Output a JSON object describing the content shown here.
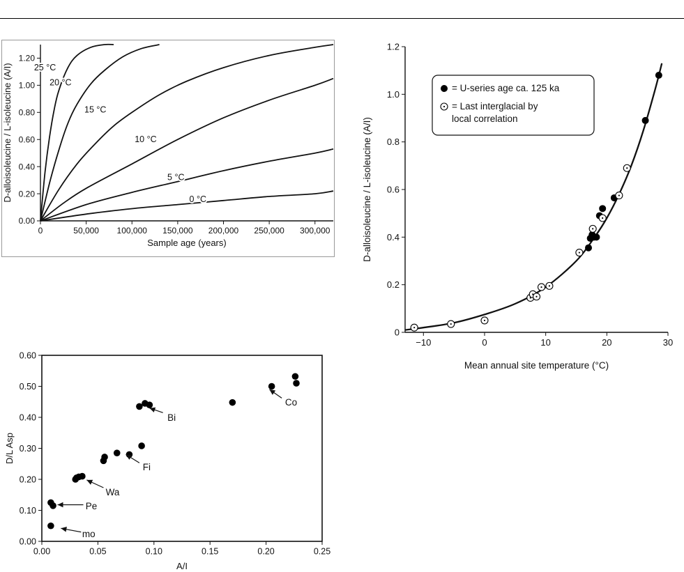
{
  "chart_data": [
    {
      "type": "line",
      "xlabel": "Sample age (years)",
      "ylabel": "D-alloisoleucine / L-isoleucine (A/I)",
      "xlim": [
        0,
        320000
      ],
      "ylim": [
        0,
        1.3
      ],
      "x_ticks": [
        0,
        50000,
        100000,
        150000,
        200000,
        250000,
        300000
      ],
      "x_tick_labels": [
        "0",
        "50,000",
        "100,000",
        "150,000",
        "200,000",
        "250,000",
        "300,000"
      ],
      "y_ticks": [
        0,
        0.2,
        0.4,
        0.6,
        0.8,
        1.0,
        1.2
      ],
      "y_tick_labels": [
        "0.00",
        "0.20",
        "0.40",
        "0.60",
        "0.80",
        "1.00",
        "1.20"
      ],
      "grid": false,
      "series": [
        {
          "name": "25 °C",
          "x": [
            0,
            5000,
            10000,
            15000,
            20000,
            30000,
            40000,
            55000,
            70000,
            80000
          ],
          "values": [
            0,
            0.36,
            0.62,
            0.82,
            0.96,
            1.13,
            1.22,
            1.28,
            1.3,
            1.3
          ]
        },
        {
          "name": "20 °C",
          "x": [
            0,
            10000,
            20000,
            30000,
            40000,
            55000,
            70000,
            90000,
            110000,
            130000
          ],
          "values": [
            0,
            0.28,
            0.52,
            0.72,
            0.86,
            1.01,
            1.11,
            1.21,
            1.27,
            1.3
          ]
        },
        {
          "name": "15 °C",
          "x": [
            0,
            20000,
            40000,
            60000,
            80000,
            100000,
            130000,
            160000,
            200000,
            250000,
            300000,
            320000
          ],
          "values": [
            0,
            0.23,
            0.42,
            0.57,
            0.7,
            0.8,
            0.93,
            1.03,
            1.13,
            1.22,
            1.28,
            1.3
          ]
        },
        {
          "name": "10 °C",
          "x": [
            0,
            25000,
            50000,
            100000,
            150000,
            200000,
            250000,
            300000,
            320000
          ],
          "values": [
            0,
            0.13,
            0.24,
            0.42,
            0.6,
            0.76,
            0.89,
            1.0,
            1.05
          ]
        },
        {
          "name": "5 °C",
          "x": [
            0,
            50000,
            100000,
            150000,
            200000,
            250000,
            300000,
            320000
          ],
          "values": [
            0,
            0.12,
            0.21,
            0.29,
            0.37,
            0.44,
            0.5,
            0.53
          ]
        },
        {
          "name": "0 °C",
          "x": [
            0,
            50000,
            100000,
            150000,
            200000,
            250000,
            300000,
            320000
          ],
          "values": [
            0,
            0.05,
            0.09,
            0.12,
            0.15,
            0.18,
            0.2,
            0.22
          ]
        }
      ],
      "series_labels": [
        {
          "text": "25 °C",
          "x": 5000,
          "y": 1.11
        },
        {
          "text": "20 °C",
          "x": 22000,
          "y": 1.0
        },
        {
          "text": "15 °C",
          "x": 60000,
          "y": 0.8
        },
        {
          "text": "10 °C",
          "x": 115000,
          "y": 0.58
        },
        {
          "text": "5 °C",
          "x": 148000,
          "y": 0.3
        },
        {
          "text": "0 °C",
          "x": 172000,
          "y": 0.14
        }
      ]
    },
    {
      "type": "scatter",
      "xlabel": "Mean annual site temperature (°C)",
      "ylabel": "D-alloisoleucine / L-isoleucine (A/I)",
      "xlim": [
        -13,
        30
      ],
      "ylim": [
        0,
        1.2
      ],
      "x_ticks": [
        -10,
        0,
        10,
        20,
        30
      ],
      "x_tick_labels": [
        "−10",
        "0",
        "10",
        "20",
        "30"
      ],
      "y_ticks": [
        0,
        0.2,
        0.4,
        0.6,
        0.8,
        1.0,
        1.2
      ],
      "y_tick_labels": [
        "0",
        "0.2",
        "0.4",
        "0.6",
        "0.8",
        "1.0",
        "1.2"
      ],
      "grid": false,
      "legend_position": "top-left",
      "series": [
        {
          "name": "= U-series age ca. 125 ka",
          "marker": "filled",
          "x": [
            17.0,
            17.3,
            17.6,
            17.9,
            18.3,
            18.8,
            19.3,
            21.2,
            26.3,
            28.5
          ],
          "values": [
            0.355,
            0.395,
            0.41,
            0.4,
            0.4,
            0.49,
            0.52,
            0.565,
            0.89,
            1.08
          ]
        },
        {
          "name": "= Last interglacial by local correlation",
          "marker": "dotted-open",
          "x": [
            -11.5,
            -5.5,
            0.0,
            7.5,
            7.9,
            8.5,
            9.3,
            10.6,
            15.5,
            17.7,
            19.3,
            22.0,
            23.3
          ],
          "values": [
            0.02,
            0.035,
            0.05,
            0.145,
            0.16,
            0.15,
            0.19,
            0.195,
            0.335,
            0.435,
            0.48,
            0.575,
            0.69
          ]
        }
      ],
      "legend_lines": [
        {
          "marker": "filled",
          "lines": [
            "= U-series age ca. 125 ka"
          ]
        },
        {
          "marker": "dotted-open",
          "lines": [
            "= Last interglacial by",
            "local correlation"
          ]
        }
      ],
      "fit_curve": {
        "x": [
          -13,
          -10,
          -5,
          0,
          5,
          10,
          15,
          18,
          20,
          22,
          24,
          26,
          28,
          29
        ],
        "values": [
          0.01,
          0.02,
          0.04,
          0.075,
          0.12,
          0.19,
          0.3,
          0.4,
          0.48,
          0.58,
          0.7,
          0.85,
          1.03,
          1.13
        ]
      }
    },
    {
      "type": "scatter",
      "xlabel": "A/I",
      "ylabel": "D/L Asp",
      "xlim": [
        0,
        0.25
      ],
      "ylim": [
        0,
        0.6
      ],
      "x_ticks": [
        0,
        0.05,
        0.1,
        0.15,
        0.2,
        0.25
      ],
      "x_tick_labels": [
        "0.00",
        "0.05",
        "0.10",
        "0.15",
        "0.20",
        "0.25"
      ],
      "y_ticks": [
        0,
        0.1,
        0.2,
        0.3,
        0.4,
        0.5,
        0.6
      ],
      "y_tick_labels": [
        "0.00",
        "0.10",
        "0.20",
        "0.30",
        "0.40",
        "0.50",
        "0.60"
      ],
      "grid": false,
      "series": [
        {
          "marker": "filled",
          "x": [
            0.008,
            0.008,
            0.01,
            0.03,
            0.031,
            0.033,
            0.036,
            0.055,
            0.056,
            0.067,
            0.078,
            0.087,
            0.089,
            0.092,
            0.096,
            0.17,
            0.205,
            0.226,
            0.227
          ],
          "values": [
            0.05,
            0.125,
            0.115,
            0.2,
            0.205,
            0.208,
            0.21,
            0.26,
            0.272,
            0.285,
            0.28,
            0.435,
            0.308,
            0.445,
            0.44,
            0.448,
            0.5,
            0.532,
            0.51
          ]
        }
      ],
      "annotations": [
        {
          "text": "mo",
          "x": 0.036,
          "y": 0.025,
          "ax": 0.017,
          "ay": 0.042,
          "tx": 0.035,
          "ty": 0.03
        },
        {
          "text": "Pe",
          "x": 0.039,
          "y": 0.115,
          "ax": 0.014,
          "ay": 0.118,
          "tx": 0.037,
          "ty": 0.118
        },
        {
          "text": "Wa",
          "x": 0.057,
          "y": 0.16,
          "ax": 0.04,
          "ay": 0.198,
          "tx": 0.055,
          "ty": 0.173
        },
        {
          "text": "Fi",
          "x": 0.09,
          "y": 0.24,
          "ax": 0.075,
          "ay": 0.28,
          "tx": 0.087,
          "ty": 0.253
        },
        {
          "text": "Bi",
          "x": 0.112,
          "y": 0.4,
          "ax": 0.096,
          "ay": 0.43,
          "tx": 0.108,
          "ty": 0.415
        },
        {
          "text": "Co",
          "x": 0.217,
          "y": 0.45,
          "ax": 0.203,
          "ay": 0.49,
          "tx": 0.214,
          "ty": 0.462
        }
      ]
    }
  ]
}
